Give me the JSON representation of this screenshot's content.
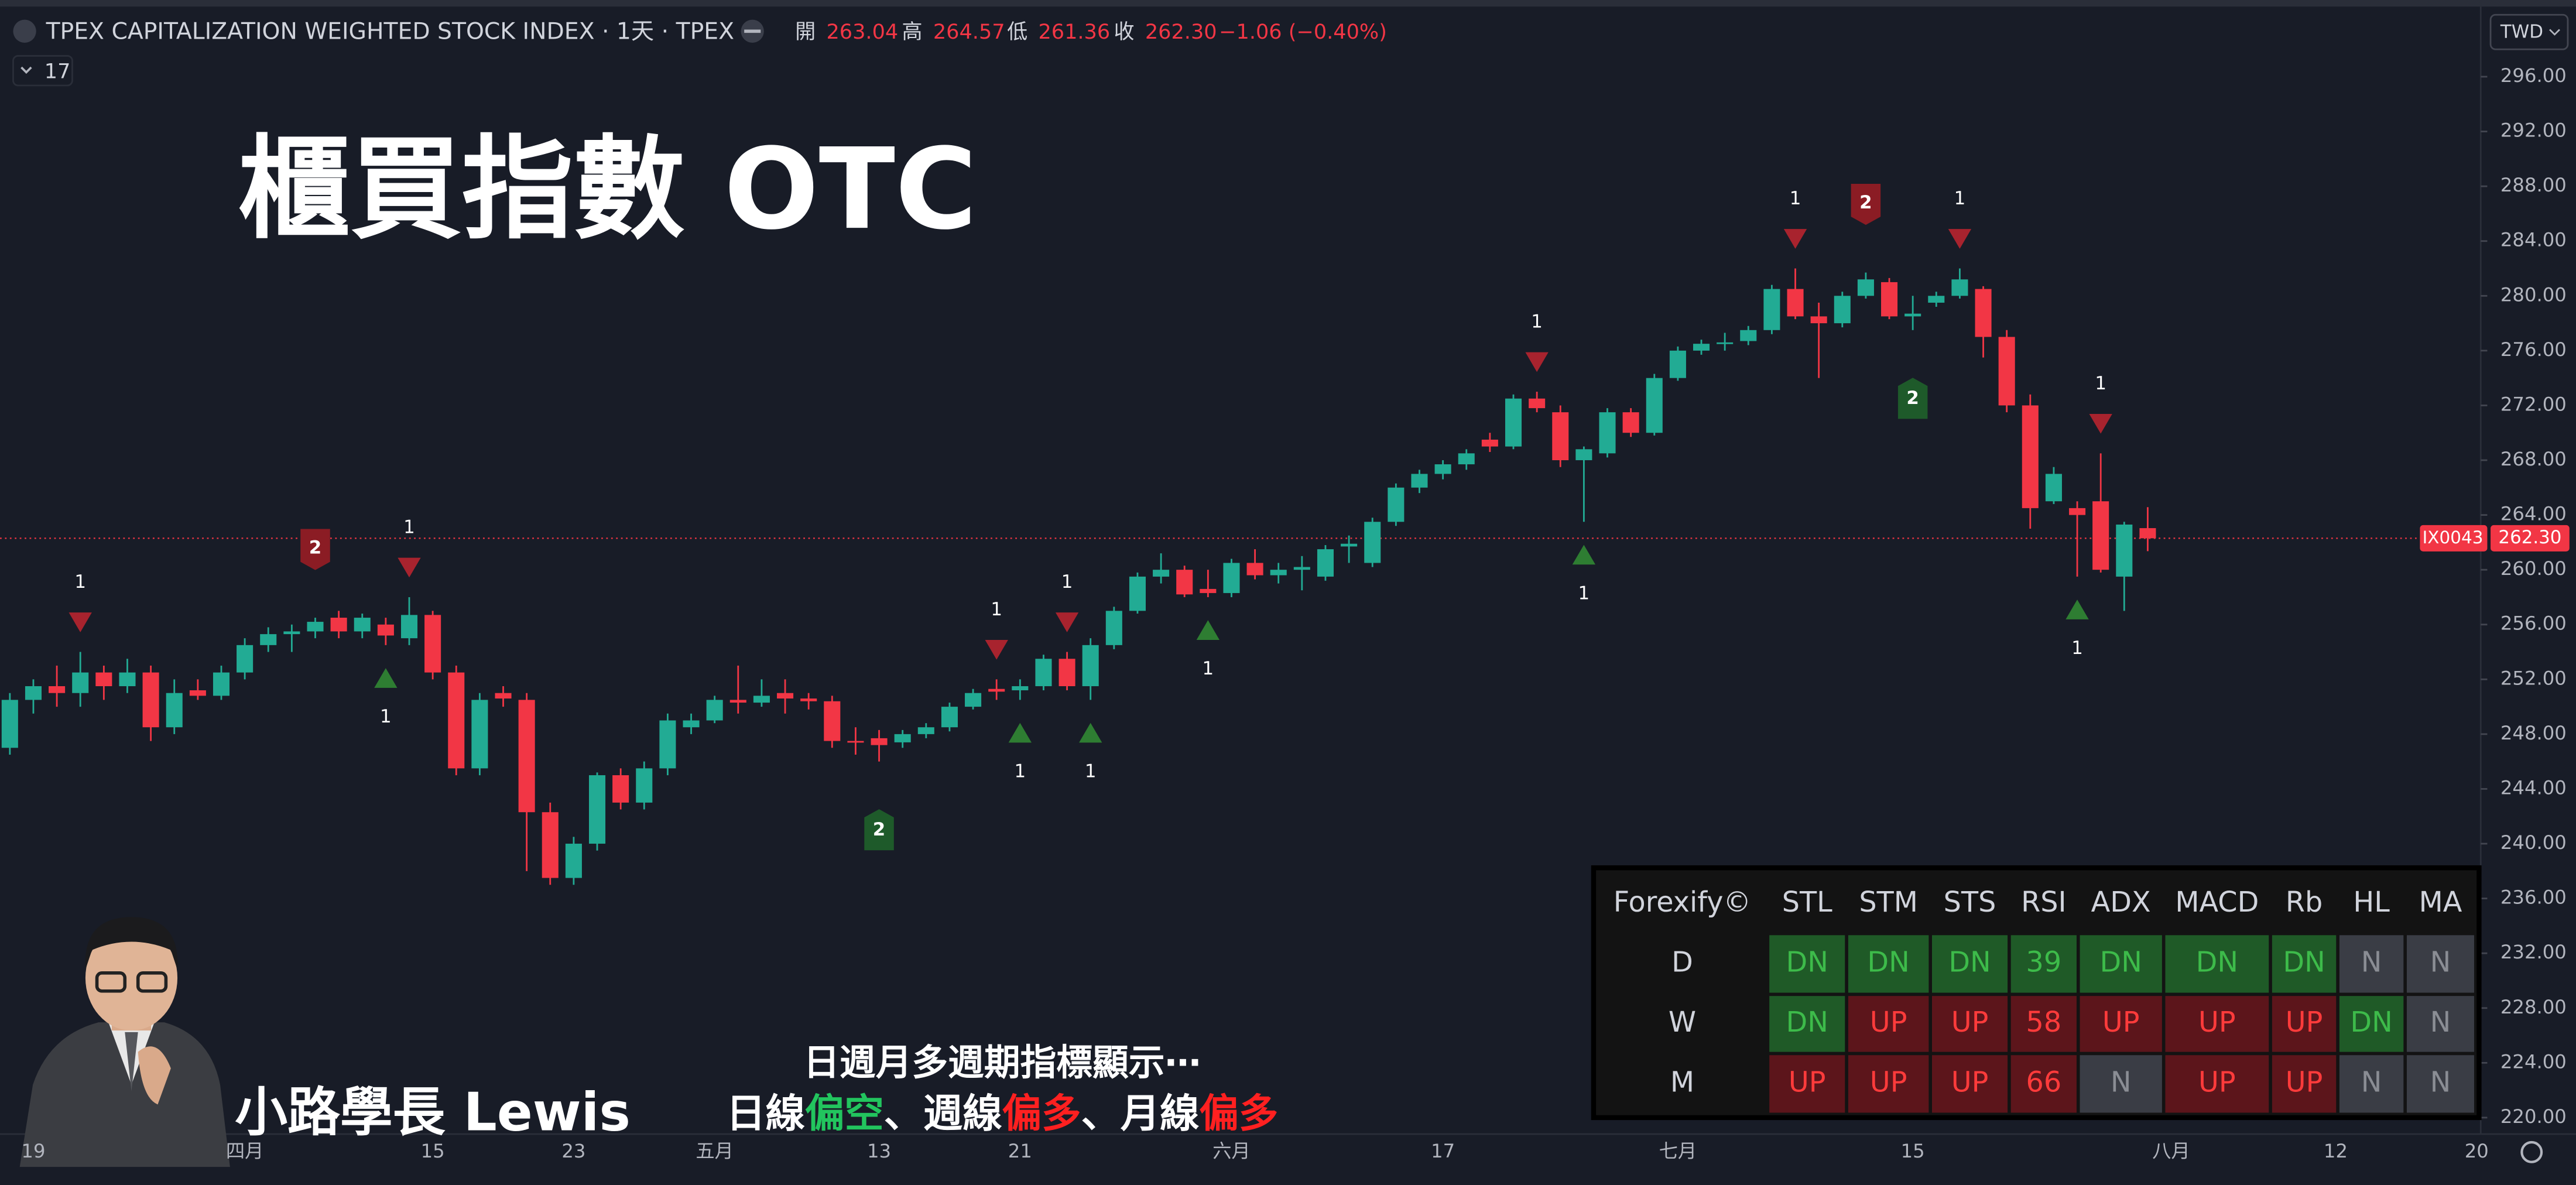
{
  "chart_data": {
    "type": "candlestick",
    "header": {
      "symbol": "TPEX CAPITALIZATION WEIGHTED STOCK INDEX · 1天 · TPEX",
      "open_label": "開",
      "open": "263.04",
      "high_label": "高",
      "high": "264.57",
      "low_label": "低",
      "low": "261.36",
      "close_label": "收",
      "close": "262.30",
      "change": "−1.06 (−0.40%)",
      "indicators": "17",
      "currency": "TWD"
    },
    "title": "櫃買指數 OTC",
    "author": "小路學長 Lewis",
    "caption": {
      "line1": "日週月多週期指標顯示⋯",
      "line2": [
        {
          "text": "日線",
          "color": "#ffffff"
        },
        {
          "text": "偏空",
          "color": "#22c55e"
        },
        {
          "text": "、週線",
          "color": "#ffffff"
        },
        {
          "text": "偏多",
          "color": "#ff2020"
        },
        {
          "text": "、月線",
          "color": "#ffffff"
        },
        {
          "text": "偏多",
          "color": "#ff2020"
        }
      ]
    },
    "price_tag": {
      "symbol": "IX0043",
      "price": "262.30",
      "value": 262.3
    },
    "up_color": "#22ab94",
    "down_color": "#f23645",
    "categories": [
      null,
      "19",
      null,
      null,
      null,
      null,
      null,
      null,
      null,
      null,
      "四月",
      null,
      null,
      null,
      null,
      null,
      null,
      null,
      "15",
      null,
      null,
      null,
      null,
      null,
      "23",
      null,
      null,
      null,
      null,
      null,
      "五月",
      null,
      null,
      null,
      null,
      null,
      null,
      "13",
      null,
      null,
      null,
      null,
      null,
      "21",
      null,
      null,
      null,
      null,
      null,
      null,
      null,
      null,
      "六月",
      null,
      null,
      null,
      null,
      null,
      null,
      null,
      null,
      "17",
      null,
      null,
      null,
      null,
      null,
      null,
      null,
      null,
      null,
      "七月",
      null,
      null,
      null,
      null,
      null,
      null,
      null,
      null,
      null,
      "15",
      null,
      null,
      null,
      null,
      null,
      null,
      null,
      null,
      null,
      null,
      "八月",
      null,
      null,
      null,
      null,
      null,
      null,
      "12",
      null,
      null,
      null,
      null,
      null,
      "20"
    ],
    "open": [
      247,
      250.5,
      251.5,
      251,
      252.5,
      251.5,
      252.5,
      248.5,
      251.2,
      250.8,
      252.5,
      254.5,
      255.3,
      255.5,
      256.5,
      255.5,
      256,
      255,
      256.7,
      252.5,
      245.5,
      251,
      250.5,
      242.3,
      237.5,
      240,
      245,
      243,
      245.5,
      248.5,
      249,
      250.5,
      250.3,
      251,
      250.6,
      250.4,
      247.5,
      247.7,
      247.4,
      248,
      248.5,
      250,
      251.3,
      251.2,
      251.5,
      253.5,
      251.5,
      254.5,
      257,
      259.5,
      260,
      258.6,
      258.3,
      260.5,
      259.6,
      260,
      259.5,
      261.7,
      260.5,
      263.5,
      266,
      267,
      267.7,
      269.5,
      269,
      272.5,
      271.5,
      268,
      268.5,
      271.5,
      270,
      274,
      276,
      276.5,
      276.7,
      277.5,
      280.5,
      278.5,
      278,
      280,
      281,
      278.5,
      279.5,
      280,
      280.5,
      277,
      272,
      265,
      264.5,
      265,
      259.5,
      263.04,
      null,
      null,
      null,
      null,
      null,
      null,
      null,
      null,
      null,
      null,
      null,
      null,
      null,
      null
    ],
    "high": [
      251,
      252,
      253,
      254,
      253,
      253.5,
      253,
      252,
      252,
      253,
      255,
      255.8,
      256,
      256.5,
      257,
      256.8,
      256.5,
      258,
      257,
      253,
      251,
      251.5,
      251,
      243,
      240.5,
      245.2,
      245.5,
      246,
      249.5,
      249.5,
      250.8,
      253,
      252,
      252,
      251,
      250.8,
      248.5,
      248.3,
      248.3,
      248.8,
      250.3,
      251.3,
      252,
      252,
      253.8,
      254,
      255,
      257.3,
      259.8,
      261.2,
      260.3,
      260,
      260.8,
      261.5,
      260.5,
      261,
      261.8,
      262.5,
      263.8,
      266.3,
      267.3,
      268,
      268.8,
      270,
      272.8,
      273,
      272,
      269,
      271.8,
      271.8,
      274.3,
      276.3,
      276.8,
      277.3,
      277.8,
      280.8,
      282,
      279.5,
      280.3,
      281.7,
      281.3,
      280,
      280.3,
      282,
      280.7,
      277.5,
      272.8,
      267.5,
      265,
      268.5,
      263.5,
      264.57,
      null,
      null,
      null,
      null,
      null,
      null,
      null,
      null,
      null,
      null,
      null,
      null,
      null,
      null
    ],
    "low": [
      246.5,
      249.5,
      250,
      250,
      250.5,
      251,
      247.5,
      248,
      250.5,
      250.5,
      252,
      254,
      254,
      255,
      255,
      255,
      254.5,
      254.5,
      252,
      245,
      245,
      250,
      238,
      237,
      237,
      239.5,
      242.5,
      242.5,
      245,
      248,
      248.8,
      249.5,
      250,
      249.5,
      249.8,
      247,
      246.5,
      246,
      247,
      247.7,
      248.2,
      249.8,
      250.5,
      250.5,
      251.2,
      251.2,
      250.5,
      254.2,
      256.8,
      259,
      258,
      258,
      258,
      259.3,
      259,
      258.5,
      259.2,
      260.5,
      260.2,
      263.2,
      265.6,
      266.6,
      267.3,
      268.6,
      268.8,
      271.5,
      267.5,
      263.5,
      268.2,
      269.7,
      269.8,
      273.8,
      275.7,
      276,
      276.4,
      277.2,
      278.3,
      274,
      277.7,
      279.8,
      278.3,
      277.5,
      279.2,
      279.8,
      275.5,
      271.5,
      263,
      264.8,
      259.5,
      259.8,
      257,
      261.36,
      null,
      null,
      null,
      null,
      null,
      null,
      null,
      null,
      null,
      null,
      null,
      null,
      null,
      null
    ],
    "close": [
      250.5,
      251.5,
      251,
      252.5,
      251.5,
      252.5,
      248.5,
      251,
      250.8,
      252.5,
      254.5,
      255.3,
      255.5,
      256.2,
      255.5,
      256.5,
      255.2,
      256.7,
      252.5,
      245.5,
      250.5,
      250.6,
      242.3,
      237.5,
      240,
      245,
      243,
      245.5,
      249,
      249,
      250.5,
      250.3,
      250.8,
      250.6,
      250.4,
      247.5,
      247.4,
      247.2,
      248,
      248.5,
      250,
      251,
      251.1,
      251.5,
      253.5,
      251.5,
      254.5,
      257,
      259.5,
      260,
      258.2,
      258.3,
      260.5,
      259.6,
      260,
      260.2,
      261.5,
      261.9,
      263.5,
      266,
      267,
      267.7,
      268.5,
      269,
      272.5,
      271.8,
      268,
      268.8,
      271.5,
      270,
      274,
      276,
      276.5,
      276.6,
      277.5,
      280.5,
      278.5,
      278,
      280,
      281.2,
      278.5,
      278.7,
      280,
      281.2,
      277,
      272,
      264.5,
      267,
      264,
      260,
      263.3,
      262.3,
      null,
      null,
      null,
      null,
      null,
      null,
      null,
      null,
      null,
      null,
      null,
      null,
      null,
      null
    ],
    "ylim": [
      218.8,
      301.0
    ],
    "yticks": [
      {
        "value": 296,
        "label": "296.00"
      },
      {
        "value": 292,
        "label": "292.00"
      },
      {
        "value": 288,
        "label": "288.00"
      },
      {
        "value": 284,
        "label": "284.00"
      },
      {
        "value": 280,
        "label": "280.00"
      },
      {
        "value": 276,
        "label": "276.00"
      },
      {
        "value": 272,
        "label": "272.00"
      },
      {
        "value": 268,
        "label": "268.00"
      },
      {
        "value": 264,
        "label": "264.00"
      },
      {
        "value": 260,
        "label": "260.00"
      },
      {
        "value": 256,
        "label": "256.00"
      },
      {
        "value": 252,
        "label": "252.00"
      },
      {
        "value": 248,
        "label": "248.00"
      },
      {
        "value": 244,
        "label": "244.00"
      },
      {
        "value": 240,
        "label": "240.00"
      },
      {
        "value": 236,
        "label": "236.00"
      },
      {
        "value": 232,
        "label": "232.00"
      },
      {
        "value": 228,
        "label": "228.00"
      },
      {
        "value": 224,
        "label": "224.00"
      },
      {
        "value": 220,
        "label": "220.00"
      }
    ],
    "signals": [
      {
        "index": 3,
        "side": "sell",
        "style": "triangle",
        "label": "1"
      },
      {
        "index": 13,
        "side": "sell",
        "style": "box",
        "label": "2"
      },
      {
        "index": 16,
        "side": "buy",
        "style": "triangle",
        "label": "1"
      },
      {
        "index": 17,
        "side": "sell",
        "style": "triangle",
        "label": "1"
      },
      {
        "index": 37,
        "side": "buy",
        "style": "box",
        "label": "2"
      },
      {
        "index": 42,
        "side": "sell",
        "style": "triangle",
        "label": "1"
      },
      {
        "index": 43,
        "side": "buy",
        "style": "triangle",
        "label": "1"
      },
      {
        "index": 45,
        "side": "sell",
        "style": "triangle",
        "label": "1"
      },
      {
        "index": 46,
        "side": "buy",
        "style": "triangle",
        "label": "1"
      },
      {
        "index": 51,
        "side": "buy",
        "style": "triangle",
        "label": "1"
      },
      {
        "index": 65,
        "side": "sell",
        "style": "triangle",
        "label": "1"
      },
      {
        "index": 67,
        "side": "buy",
        "style": "triangle",
        "label": "1"
      },
      {
        "index": 76,
        "side": "sell",
        "style": "triangle",
        "label": "1"
      },
      {
        "index": 79,
        "side": "sell",
        "style": "box",
        "label": "2"
      },
      {
        "index": 81,
        "side": "buy",
        "style": "box",
        "label": "2"
      },
      {
        "index": 83,
        "side": "sell",
        "style": "triangle",
        "label": "1"
      },
      {
        "index": 88,
        "side": "buy",
        "style": "triangle",
        "label": "1"
      },
      {
        "index": 89,
        "side": "sell",
        "style": "triangle",
        "label": "1"
      }
    ],
    "table": {
      "header": [
        "Forexify©",
        "STL",
        "STM",
        "STS",
        "RSI",
        "ADX",
        "MACD",
        "Rb",
        "HL",
        "MA"
      ],
      "rows": [
        {
          "label": "D",
          "cells": [
            "DN",
            "DN",
            "DN",
            "39",
            "DN",
            "DN",
            "DN",
            "N",
            "N"
          ],
          "tones": [
            "green",
            "green",
            "green",
            "green",
            "green",
            "green",
            "green",
            "gray",
            "gray"
          ]
        },
        {
          "label": "W",
          "cells": [
            "DN",
            "UP",
            "UP",
            "58",
            "UP",
            "UP",
            "UP",
            "DN",
            "N"
          ],
          "tones": [
            "green",
            "red",
            "red",
            "red",
            "red",
            "red",
            "red",
            "green",
            "gray"
          ]
        },
        {
          "label": "M",
          "cells": [
            "UP",
            "UP",
            "UP",
            "66",
            "N",
            "UP",
            "UP",
            "N",
            "N"
          ],
          "tones": [
            "red",
            "red",
            "red",
            "red",
            "gray",
            "red",
            "red",
            "gray",
            "gray"
          ]
        }
      ]
    }
  }
}
